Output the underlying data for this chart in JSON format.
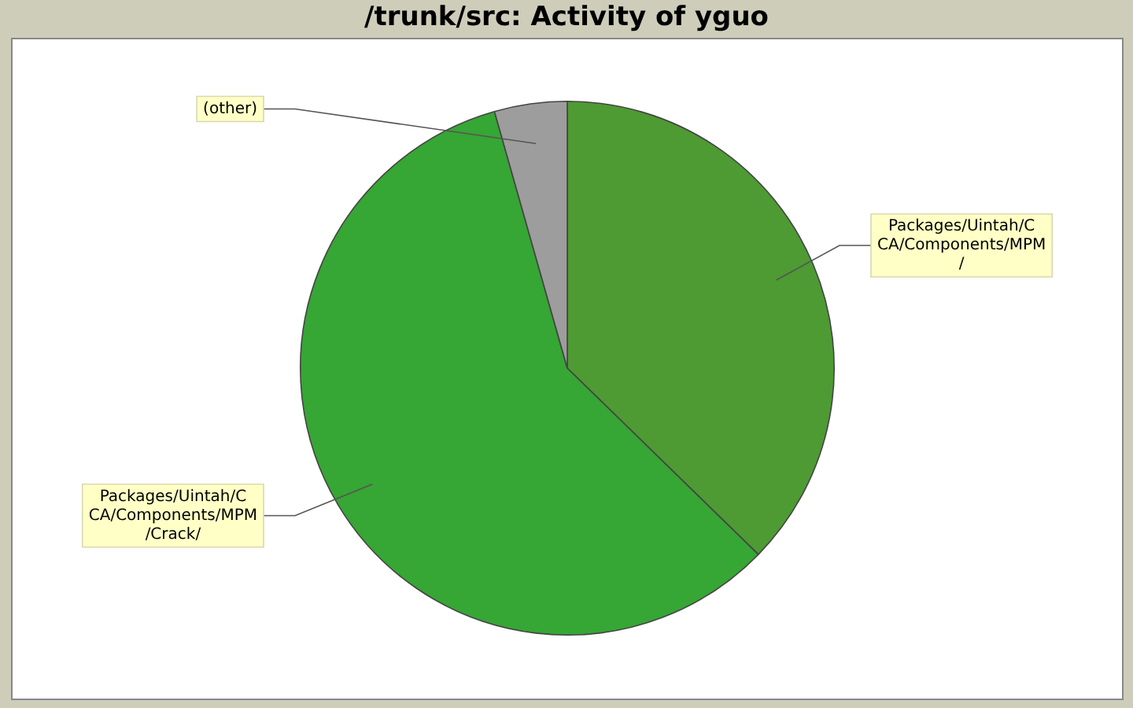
{
  "chart_data": {
    "type": "pie",
    "title": "/trunk/src: Activity of yguo",
    "categories": [
      "Packages/Uintah/CCA/Components/MPM/",
      "Packages/Uintah/CCA/Components/MPM/Crack/",
      "(other)"
    ],
    "values": [
      37.3,
      58.3,
      4.4
    ],
    "colors": [
      "#4e9a33",
      "#36a634",
      "#9d9d9d"
    ],
    "legend": false
  }
}
